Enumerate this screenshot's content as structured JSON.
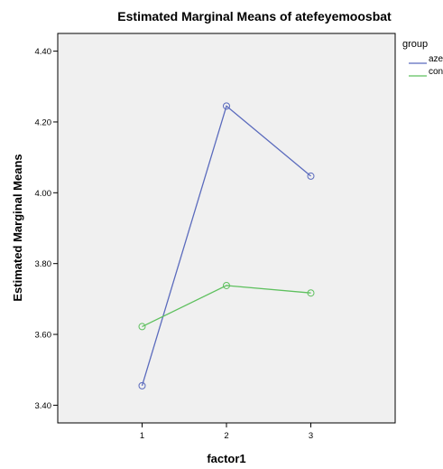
{
  "chart_data": {
    "type": "line",
    "title": "Estimated Marginal Means of atefeyemoosbat",
    "xlabel": "factor1",
    "ylabel": "Estimated Marginal Means",
    "categories": [
      "1",
      "2",
      "3"
    ],
    "ylim": [
      3.35,
      4.45
    ],
    "yticks": [
      "3.40",
      "3.60",
      "3.80",
      "4.00",
      "4.20",
      "4.40"
    ],
    "grid": false,
    "legend": {
      "title": "group",
      "placement": "right"
    },
    "series": [
      {
        "name": "aze",
        "color": "#5b6bbd",
        "values": [
          3.455,
          4.245,
          4.047
        ]
      },
      {
        "name": "con",
        "color": "#5ec05e",
        "values": [
          3.622,
          3.738,
          3.717
        ]
      }
    ]
  }
}
